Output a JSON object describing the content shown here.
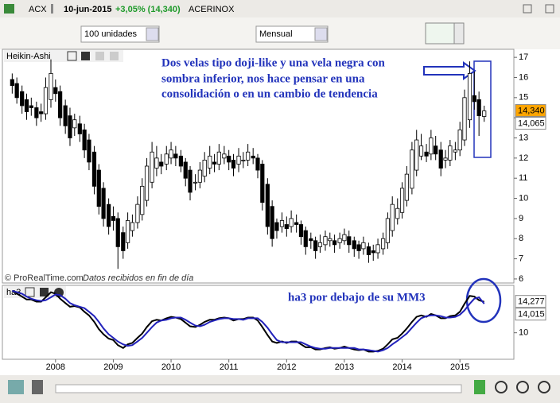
{
  "toolbar": {
    "symbol": "ACX",
    "date": "10-jun-2015",
    "change": "+3,05% (14,340)",
    "name": "ACERINOX",
    "units": "100 unidades",
    "period": "Mensual"
  },
  "footer": {
    "source": "© ProRealTime.com",
    "note": "Datos recibidos en fin de día"
  },
  "chart_data": [
    {
      "type": "candlestick",
      "title": "Heikin-Ashi",
      "annotation": [
        "Dos velas tipo doji-like y una vela negra con",
        "sombra inferior, nos hace pensar en una",
        "consolidación o en un cambio de tendencia"
      ],
      "x": [
        2007.25,
        2007.33,
        2007.42,
        2007.5,
        2007.58,
        2007.67,
        2007.75,
        2007.83,
        2007.92,
        2008,
        2008.08,
        2008.17,
        2008.25,
        2008.33,
        2008.42,
        2008.5,
        2008.58,
        2008.67,
        2008.75,
        2008.83,
        2008.92,
        2009,
        2009.08,
        2009.17,
        2009.25,
        2009.33,
        2009.42,
        2009.5,
        2009.58,
        2009.67,
        2009.75,
        2009.83,
        2009.92,
        2010,
        2010.08,
        2010.17,
        2010.25,
        2010.33,
        2010.42,
        2010.5,
        2010.58,
        2010.67,
        2010.75,
        2010.83,
        2010.92,
        2011,
        2011.08,
        2011.17,
        2011.25,
        2011.33,
        2011.42,
        2011.5,
        2011.58,
        2011.67,
        2011.75,
        2011.83,
        2011.92,
        2012,
        2012.08,
        2012.17,
        2012.25,
        2012.33,
        2012.42,
        2012.5,
        2012.58,
        2012.67,
        2012.75,
        2012.83,
        2012.92,
        2013,
        2013.08,
        2013.17,
        2013.25,
        2013.33,
        2013.42,
        2013.5,
        2013.58,
        2013.67,
        2013.75,
        2013.83,
        2013.92,
        2014,
        2014.08,
        2014.17,
        2014.25,
        2014.33,
        2014.42,
        2014.5,
        2014.58,
        2014.67,
        2014.75,
        2014.83,
        2014.92,
        2015,
        2015.08,
        2015.17,
        2015.25,
        2015.33,
        2015.42
      ],
      "open": [
        15.9,
        15.7,
        15.3,
        14.9,
        14.6,
        14.5,
        14.3,
        14.2,
        14.9,
        15.5,
        15.3,
        14.6,
        14.1,
        13.5,
        13.7,
        13.4,
        12.9,
        12.3,
        11.4,
        10.5,
        9.7,
        9.1,
        9.0,
        8.3,
        7.8,
        8.4,
        8.8,
        9.2,
        9.9,
        10.8,
        11.5,
        11.8,
        11.7,
        12.0,
        12.2,
        12.1,
        11.8,
        11.4,
        10.8,
        10.8,
        11.1,
        11.5,
        11.8,
        11.7,
        12.0,
        12.1,
        11.9,
        11.7,
        11.9,
        11.9,
        12.1,
        12.0,
        11.7,
        10.7,
        9.6,
        8.8,
        8.6,
        8.7,
        8.6,
        8.8,
        8.7,
        8.4,
        8.0,
        7.9,
        7.6,
        7.7,
        7.9,
        7.9,
        7.8,
        7.9,
        8.1,
        7.9,
        7.7,
        7.5,
        7.6,
        7.4,
        7.3,
        7.5,
        7.8,
        8.4,
        9.0,
        9.3,
        9.9,
        10.5,
        11.4,
        12.1,
        12.3,
        12.2,
        12.6,
        12.4,
        11.9,
        11.9,
        12.3,
        12.4,
        12.9,
        13.9,
        15.1,
        14.9,
        14.065
      ],
      "high": [
        16.2,
        16.0,
        15.6,
        15.2,
        15.0,
        14.8,
        14.7,
        16.0,
        16.9,
        15.9,
        15.6,
        14.9,
        14.5,
        14.2,
        14.1,
        13.7,
        13.2,
        12.6,
        11.7,
        10.8,
        10.0,
        9.6,
        9.3,
        8.6,
        9.3,
        9.2,
        10.1,
        11.0,
        12.0,
        12.8,
        12.6,
        12.2,
        12.6,
        12.8,
        12.6,
        12.4,
        12.0,
        11.6,
        11.2,
        11.8,
        12.3,
        12.6,
        12.2,
        12.7,
        12.6,
        12.4,
        12.2,
        12.5,
        12.3,
        12.7,
        12.5,
        12.2,
        11.9,
        11.0,
        9.9,
        9.0,
        9.3,
        9.1,
        9.4,
        9.2,
        8.9,
        8.6,
        8.3,
        8.1,
        8.2,
        8.4,
        8.3,
        8.2,
        8.3,
        8.5,
        8.4,
        8.1,
        7.9,
        8.1,
        7.8,
        7.7,
        8.0,
        8.3,
        9.3,
        10.1,
        10.0,
        10.8,
        11.6,
        12.8,
        13.4,
        13.2,
        12.7,
        13.4,
        13.1,
        12.8,
        12.4,
        12.9,
        12.8,
        13.8,
        15.4,
        16.8,
        16.3,
        15.3,
        14.6
      ],
      "low": [
        15.2,
        14.7,
        14.2,
        13.9,
        14.1,
        13.6,
        13.8,
        13.9,
        14.5,
        14.8,
        13.6,
        13.2,
        12.6,
        13.1,
        12.8,
        12.0,
        11.4,
        10.2,
        9.2,
        8.6,
        8.2,
        8.4,
        6.5,
        7.0,
        7.5,
        8.1,
        8.5,
        8.9,
        9.6,
        10.5,
        11.1,
        11.2,
        11.4,
        11.7,
        11.6,
        11.3,
        10.6,
        9.9,
        10.4,
        10.5,
        10.8,
        11.2,
        11.3,
        11.4,
        11.7,
        11.4,
        11.1,
        11.3,
        11.5,
        11.6,
        11.7,
        11.0,
        9.4,
        8.2,
        7.6,
        8.0,
        8.3,
        8.1,
        8.3,
        8.3,
        7.7,
        7.2,
        7.5,
        7.0,
        7.3,
        7.4,
        7.6,
        7.3,
        7.5,
        7.7,
        7.3,
        7.1,
        7.0,
        7.2,
        6.8,
        6.9,
        7.0,
        7.2,
        7.5,
        8.1,
        8.7,
        9.0,
        9.6,
        10.2,
        11.1,
        11.9,
        11.8,
        11.9,
        11.9,
        11.1,
        11.5,
        11.6,
        11.9,
        12.1,
        12.6,
        13.5,
        14.4,
        13.1,
        13.8
      ],
      "close": [
        15.6,
        15.0,
        14.6,
        14.3,
        14.5,
        14.0,
        14.2,
        15.5,
        16.2,
        15.2,
        14.0,
        13.6,
        13.0,
        13.9,
        13.2,
        12.4,
        11.8,
        10.6,
        9.6,
        9.0,
        8.6,
        8.9,
        7.6,
        7.4,
        8.9,
        8.8,
        9.7,
        10.6,
        11.6,
        12.3,
        12.0,
        11.6,
        12.2,
        12.4,
        12.0,
        11.6,
        11.0,
        10.3,
        10.8,
        11.4,
        11.9,
        12.1,
        11.7,
        12.3,
        12.2,
        11.8,
        11.5,
        12.1,
        11.9,
        12.3,
        12.0,
        11.4,
        9.8,
        8.6,
        8.0,
        8.4,
        8.9,
        8.5,
        9.0,
        8.7,
        8.1,
        7.6,
        7.9,
        7.4,
        7.8,
        8.1,
        8.0,
        7.7,
        8.0,
        8.2,
        7.7,
        7.5,
        7.4,
        7.8,
        7.2,
        7.3,
        7.7,
        8.0,
        9.0,
        9.7,
        9.5,
        10.5,
        11.2,
        12.4,
        12.9,
        12.6,
        12.1,
        13.0,
        12.2,
        11.5,
        12.0,
        12.6,
        12.4,
        13.4,
        15.0,
        16.2,
        14.8,
        14.1,
        14.34
      ],
      "last_close_label": "14,340",
      "last_open_label": "14,065",
      "up_color": "#ffffff",
      "down_color": "#000000",
      "xlim": [
        2007.08,
        2015.92
      ],
      "xticks": [
        2008,
        2009,
        2010,
        2011,
        2012,
        2013,
        2014,
        2015
      ],
      "ylim": [
        5.8,
        17.4
      ],
      "yticks": [
        6,
        7,
        8,
        9,
        10,
        11,
        12,
        13,
        14,
        15,
        16,
        17
      ]
    },
    {
      "type": "line",
      "title": "ha3",
      "annotation": "ha3 por debajo de su MM3",
      "series": [
        {
          "name": "ha3",
          "color": "#000000",
          "last_label": "14,277",
          "values": [
            15.8,
            15.4,
            15.0,
            14.6,
            14.6,
            14.3,
            14.3,
            14.9,
            15.6,
            15.4,
            14.7,
            14.1,
            13.6,
            13.7,
            13.5,
            12.9,
            12.4,
            11.5,
            10.5,
            9.8,
            9.2,
            9.0,
            8.3,
            7.9,
            8.4,
            8.6,
            9.3,
            9.9,
            10.8,
            11.6,
            11.8,
            11.7,
            12.0,
            12.2,
            12.1,
            11.9,
            11.4,
            10.9,
            10.8,
            11.1,
            11.5,
            11.8,
            11.8,
            12.0,
            12.1,
            12.0,
            11.7,
            11.9,
            11.9,
            12.1,
            12.1,
            11.7,
            10.8,
            9.7,
            8.8,
            8.6,
            8.8,
            8.6,
            8.8,
            8.8,
            8.4,
            8.0,
            8.0,
            7.7,
            7.7,
            7.9,
            8.0,
            7.8,
            7.9,
            8.1,
            7.9,
            7.7,
            7.6,
            7.7,
            7.4,
            7.4,
            7.5,
            7.8,
            8.4,
            9.1,
            9.3,
            9.9,
            10.6,
            11.5,
            12.2,
            12.4,
            12.2,
            12.6,
            12.4,
            12.0,
            12.0,
            12.3,
            12.4,
            12.9,
            14.0,
            15.1,
            15.0,
            14.5,
            14.277
          ]
        },
        {
          "color": "#2222bb",
          "last_label": "14,015",
          "values": [
            15.8,
            15.6,
            15.4,
            15.0,
            14.7,
            14.5,
            14.4,
            14.5,
            14.9,
            15.3,
            15.2,
            14.7,
            14.1,
            13.8,
            13.6,
            13.4,
            12.9,
            12.3,
            11.5,
            10.6,
            9.8,
            9.3,
            8.8,
            8.4,
            8.2,
            8.3,
            8.8,
            9.3,
            10.0,
            10.8,
            11.4,
            11.7,
            11.8,
            12.0,
            12.1,
            12.1,
            11.8,
            11.4,
            11.0,
            10.9,
            11.1,
            11.5,
            11.7,
            11.9,
            12.0,
            12.0,
            11.9,
            11.9,
            11.8,
            12.0,
            12.0,
            12.0,
            11.5,
            10.7,
            9.8,
            9.0,
            8.7,
            8.7,
            8.7,
            8.7,
            8.7,
            8.4,
            8.1,
            7.9,
            7.8,
            7.8,
            7.9,
            7.9,
            7.9,
            7.9,
            7.9,
            7.9,
            7.7,
            7.7,
            7.6,
            7.5,
            7.4,
            7.6,
            7.9,
            8.4,
            8.9,
            9.4,
            9.9,
            10.7,
            11.4,
            12.0,
            12.3,
            12.4,
            12.4,
            12.3,
            12.1,
            12.1,
            12.2,
            12.5,
            13.1,
            14.0,
            14.7,
            14.9,
            14.015
          ]
        }
      ],
      "ylim": [
        7,
        16
      ],
      "yticks": [
        10
      ]
    }
  ]
}
